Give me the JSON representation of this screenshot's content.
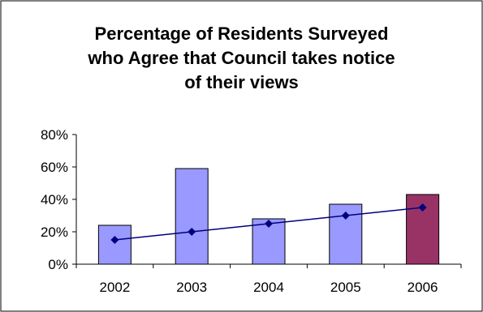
{
  "chart_data": {
    "type": "bar",
    "title": [
      "Percentage of Residents Surveyed",
      "who Agree that Council takes notice",
      "of their views"
    ],
    "categories": [
      "2002",
      "2003",
      "2004",
      "2005",
      "2006"
    ],
    "series": [
      {
        "values": [
          24,
          59,
          28,
          37,
          43
        ]
      },
      {
        "type": "line",
        "values": [
          15,
          20,
          25,
          30,
          35
        ]
      }
    ],
    "yticks": [
      "0%",
      "20%",
      "40%",
      "60%",
      "80%"
    ],
    "ylim": [
      0,
      80
    ],
    "xlabel": "",
    "ylabel": "",
    "grid": false,
    "colors": {
      "bar": "#9999ff",
      "bar_highlight": "#993366",
      "line": "#000080",
      "axis": "#000000"
    }
  }
}
